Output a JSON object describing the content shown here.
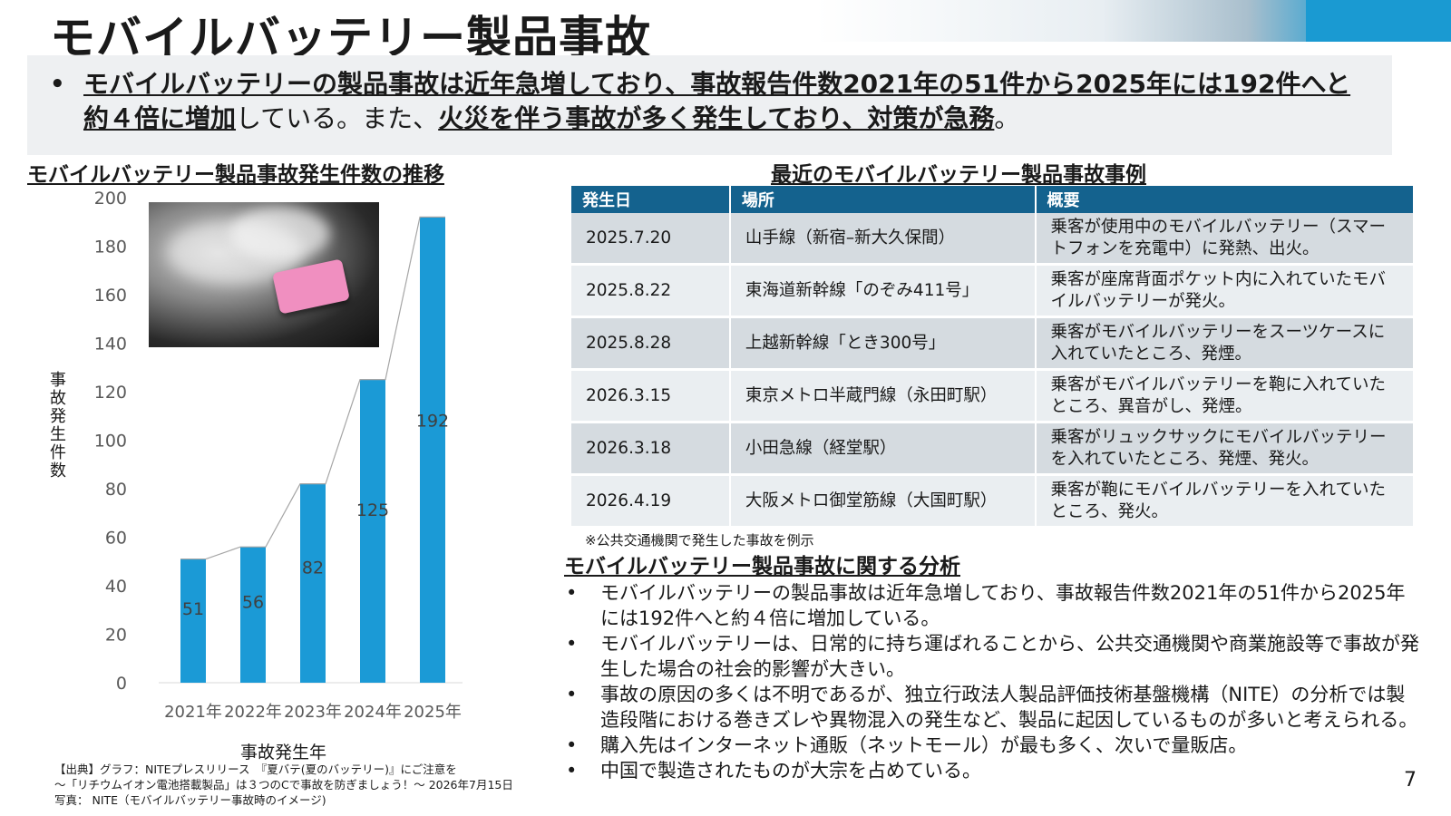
{
  "title": "モバイルバッテリー製品事故",
  "summary": {
    "bullet": "•",
    "part1": "モバイルバッテリーの製品事故は近年急増しており、事故報告件数2021年の51件から2025年には192件へと約４倍に増加",
    "part2": "している。また、",
    "part3": "火災を伴う事故が多く発生しており、対策が急務",
    "part4": "。"
  },
  "chart_section_title": "モバイルバッテリー製品事故発生件数の推移",
  "chart_data": {
    "type": "bar",
    "categories": [
      "2021年",
      "2022年",
      "2023年",
      "2024年",
      "2025年"
    ],
    "values": [
      51,
      56,
      82,
      125,
      192
    ],
    "data_labels": [
      "51",
      "56",
      "82",
      "125",
      "192"
    ],
    "xlabel": "事故発生年",
    "ylabel": "事故発生件数",
    "ylim": [
      0,
      200
    ],
    "yticks": [
      "0",
      "20",
      "40",
      "60",
      "80",
      "100",
      "120",
      "140",
      "160",
      "180",
      "200"
    ],
    "grid": false,
    "trend_line": true,
    "bar_color": "#1b9ad6",
    "line_color": "#a6a6a6"
  },
  "source": {
    "line1": "【出典】グラフ：NITEプレスリリース　『夏バテ(夏のバッテリー)』にご注意を",
    "line2": "～「リチウムイオン電池搭載製品」は３つのCで事故を防ぎましょう！～ 2026年7月15日",
    "line3": "写真：  NITE（モバイルバッテリー事故時のイメージ)"
  },
  "cases_title": "最近のモバイルバッテリー製品事故事例",
  "cases": {
    "headers": [
      "発生日",
      "場所",
      "概要"
    ],
    "rows": [
      {
        "date": "2025.7.20",
        "place": "山手線（新宿–新大久保間）",
        "summary": "乗客が使用中のモバイルバッテリー（スマートフォンを充電中）に発熱、出火。"
      },
      {
        "date": "2025.8.22",
        "place": "東海道新幹線「のぞみ411号」",
        "summary": "乗客が座席背面ポケット内に入れていたモバイルバッテリーが発火。"
      },
      {
        "date": "2025.8.28",
        "place": "上越新幹線「とき300号」",
        "summary": "乗客がモバイルバッテリーをスーツケースに入れていたところ、発煙。"
      },
      {
        "date": "2026.3.15",
        "place": "東京メトロ半蔵門線（永田町駅）",
        "summary": "乗客がモバイルバッテリーを鞄に入れていたところ、異音がし、発煙。"
      },
      {
        "date": "2026.3.18",
        "place": "小田急線（経堂駅）",
        "summary": "乗客がリュックサックにモバイルバッテリーを入れていたところ、発煙、発火。"
      },
      {
        "date": "2026.4.19",
        "place": "大阪メトロ御堂筋線（大国町駅）",
        "summary": "乗客が鞄にモバイルバッテリーを入れていたところ、発火。"
      }
    ],
    "note": "※公共交通機関で発生した事故を例示"
  },
  "analysis_title": "モバイルバッテリー製品事故に関する分析",
  "analysis": [
    "モバイルバッテリーの製品事故は近年急増しており、事故報告件数2021年の51件から2025年には192件へと約４倍に増加している。",
    "モバイルバッテリーは、日常的に持ち運ばれることから、公共交通機関や商業施設等で事故が発生した場合の社会的影響が大きい。",
    "事故の原因の多くは不明であるが、独立行政法人製品評価技術基盤機構（NITE）の分析では製造段階における巻きズレや異物混入の発生など、製品に起因しているものが多いと考えられる。",
    "購入先はインターネット通販（ネットモール）が最も多く、次いで量販店。",
    "中国で製造されたものが大宗を占めている。"
  ],
  "page_number": "7",
  "photo_icon": "pink-mobile-battery-smoking-photo"
}
